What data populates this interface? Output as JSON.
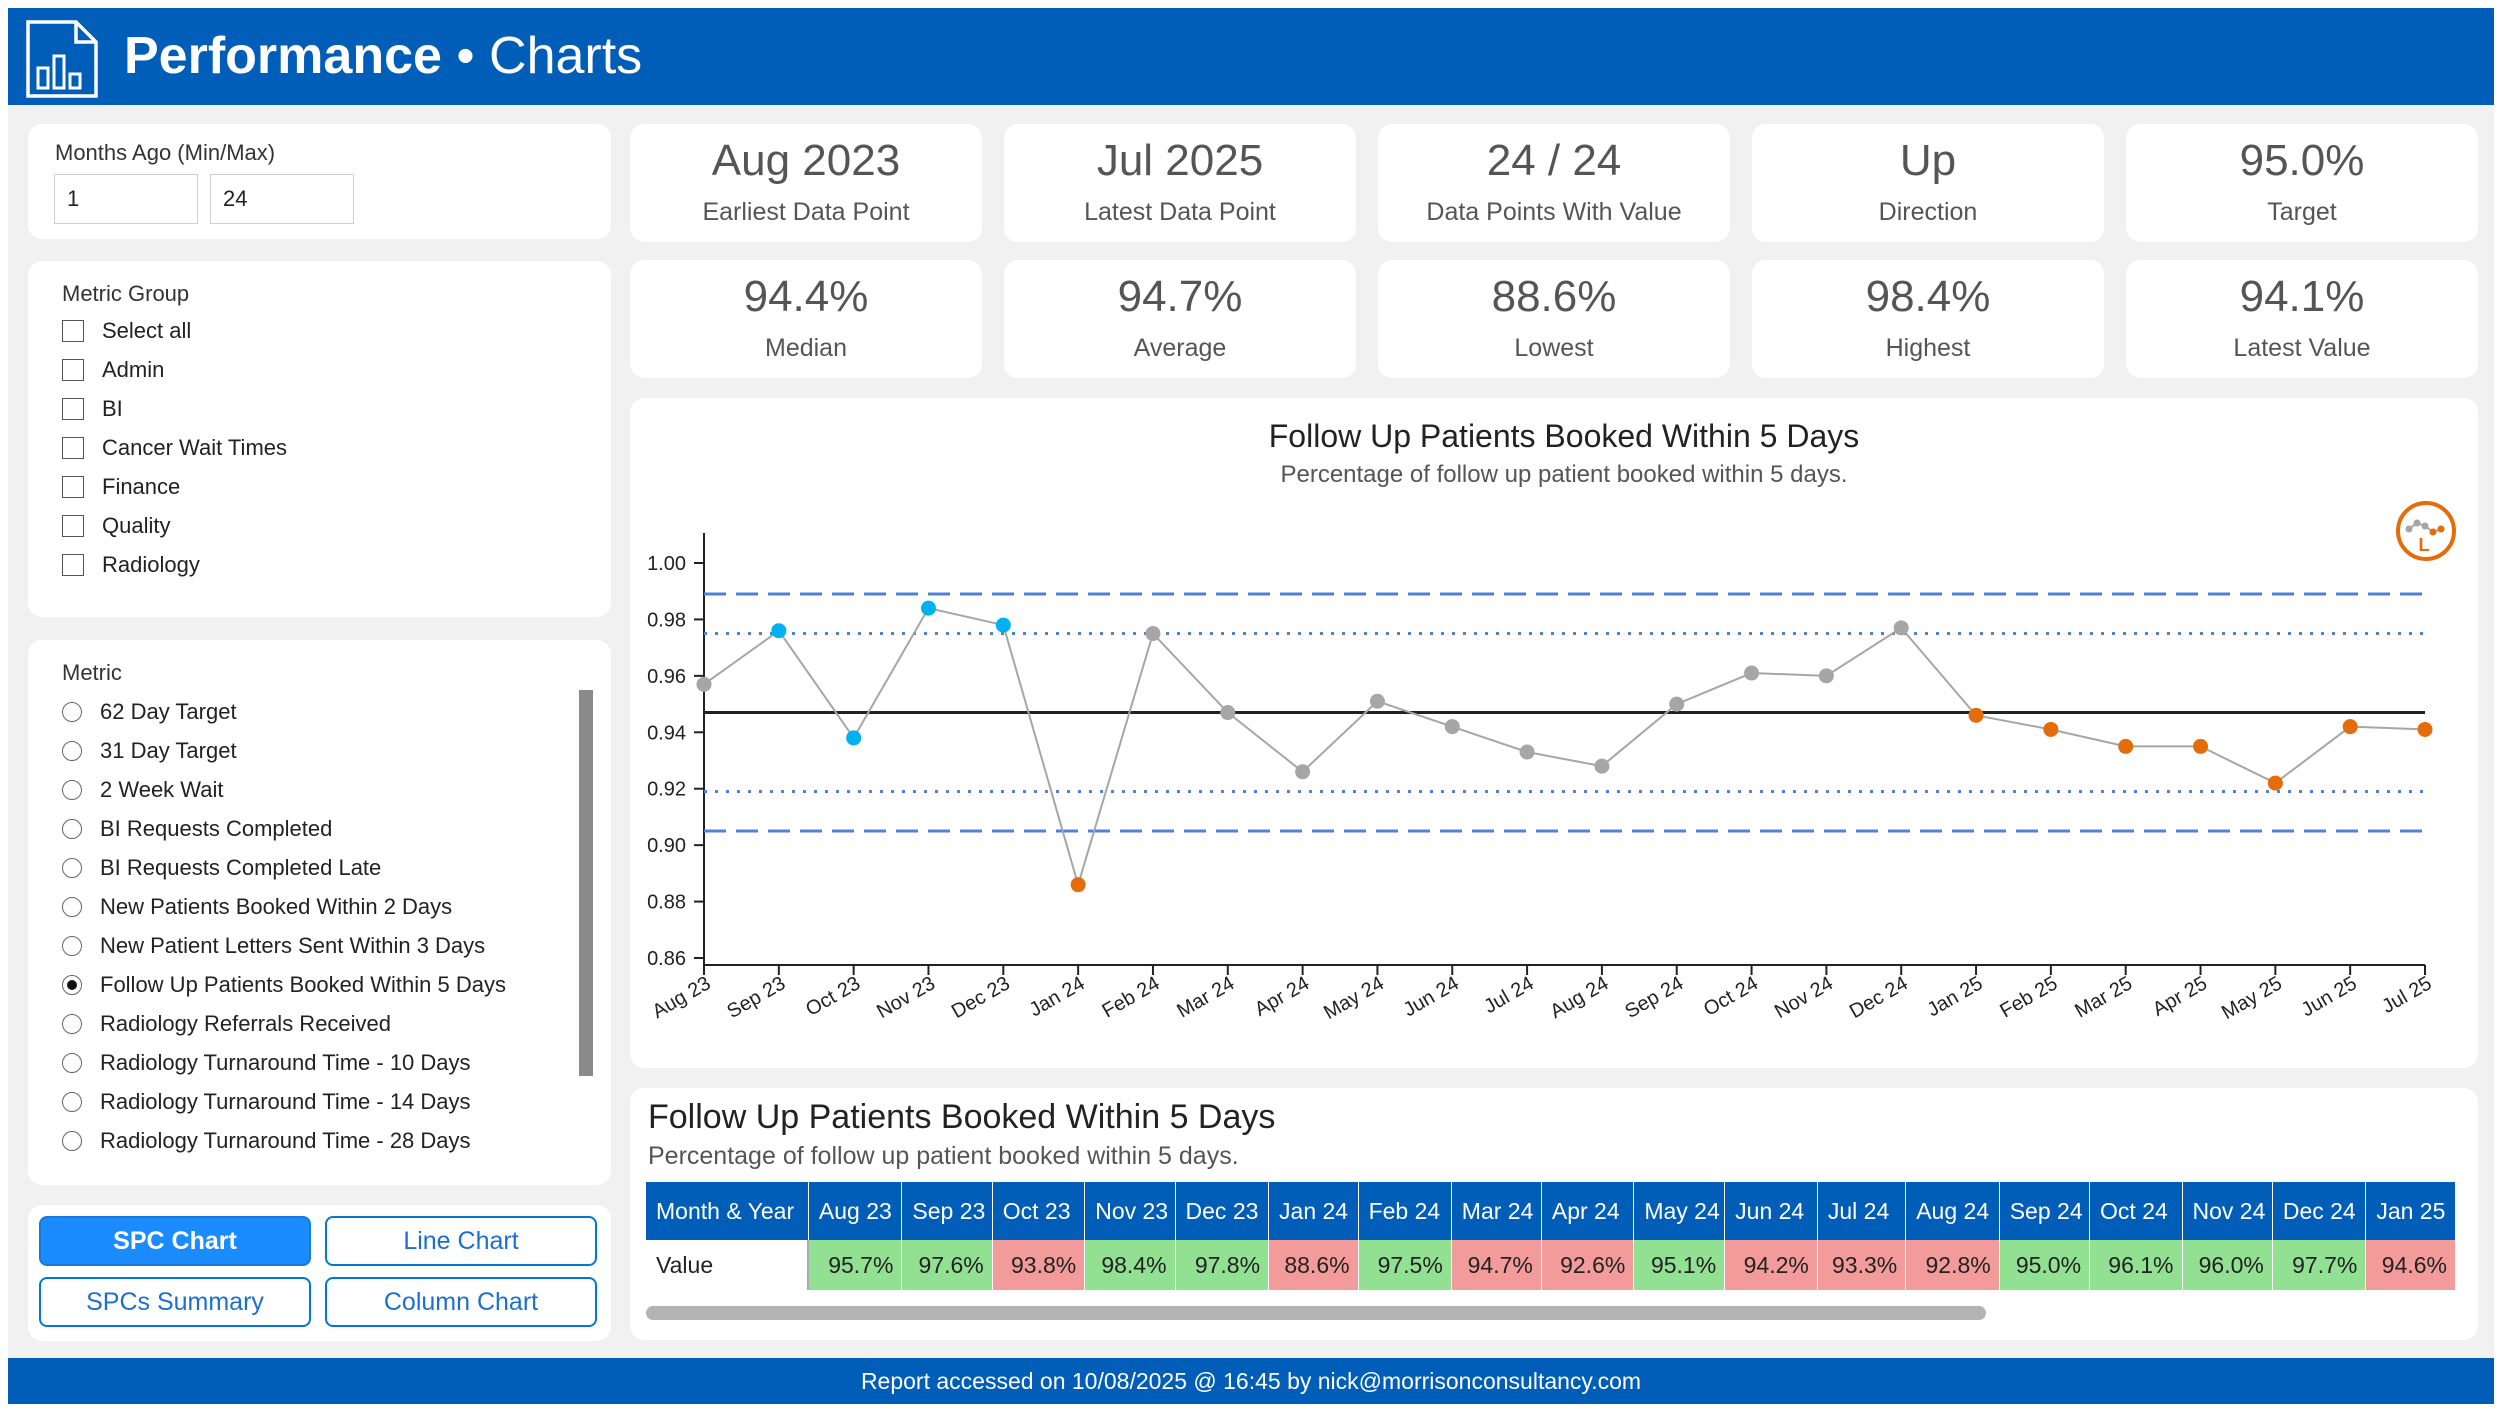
{
  "header": {
    "title_bold": "Performance",
    "title_rest": " • Charts"
  },
  "months": {
    "label": "Months Ago (Min/Max)",
    "min": "1",
    "max": "24"
  },
  "metric_group": {
    "title": "Metric Group",
    "items": [
      "Select all",
      "Admin",
      "BI",
      "Cancer Wait Times",
      "Finance",
      "Quality",
      "Radiology"
    ]
  },
  "metric": {
    "title": "Metric",
    "selected": "Follow Up Patients Booked Within 5 Days",
    "items": [
      "62 Day Target",
      "31 Day Target",
      "2 Week Wait",
      "BI Requests Completed",
      "BI Requests Completed Late",
      "New Patients Booked Within 2 Days",
      "New Patient Letters Sent Within 3 Days",
      "Follow Up Patients Booked Within 5 Days",
      "Radiology Referrals Received",
      "Radiology Turnaround Time - 10 Days",
      "Radiology Turnaround Time - 14 Days",
      "Radiology Turnaround Time - 28 Days"
    ]
  },
  "buttons": {
    "spc_chart": "SPC Chart",
    "line_chart": "Line Chart",
    "spcs_summary": "SPCs Summary",
    "column_chart": "Column Chart"
  },
  "kpis": [
    {
      "value": "Aug 2023",
      "label": "Earliest Data Point"
    },
    {
      "value": "Jul 2025",
      "label": "Latest Data Point"
    },
    {
      "value": "24 / 24",
      "label": "Data Points With Value"
    },
    {
      "value": "Up",
      "label": "Direction"
    },
    {
      "value": "95.0%",
      "label": "Target"
    },
    {
      "value": "94.4%",
      "label": "Median"
    },
    {
      "value": "94.7%",
      "label": "Average"
    },
    {
      "value": "88.6%",
      "label": "Lowest"
    },
    {
      "value": "98.4%",
      "label": "Highest"
    },
    {
      "value": "94.1%",
      "label": "Latest Value"
    }
  ],
  "chart_data": {
    "type": "line",
    "title": "Follow Up Patients Booked Within 5 Days",
    "subtitle": "Percentage of follow up patient booked within 5 days.",
    "categories": [
      "Aug 23",
      "Sep 23",
      "Oct 23",
      "Nov 23",
      "Dec 23",
      "Jan 24",
      "Feb 24",
      "Mar 24",
      "Apr 24",
      "May 24",
      "Jun 24",
      "Jul 24",
      "Aug 24",
      "Sep 24",
      "Oct 24",
      "Nov 24",
      "Dec 24",
      "Jan 25",
      "Feb 25",
      "Mar 25",
      "Apr 25",
      "May 25",
      "Jun 25",
      "Jul 25"
    ],
    "values": [
      0.957,
      0.976,
      0.938,
      0.984,
      0.978,
      0.886,
      0.975,
      0.947,
      0.926,
      0.951,
      0.942,
      0.933,
      0.928,
      0.95,
      0.961,
      0.96,
      0.977,
      0.946,
      0.941,
      0.935,
      0.935,
      0.922,
      0.942,
      0.941
    ],
    "point_status": [
      "common",
      "improvement",
      "improvement",
      "improvement",
      "improvement",
      "concern",
      "common",
      "common",
      "common",
      "common",
      "common",
      "common",
      "common",
      "common",
      "common",
      "common",
      "common",
      "concern",
      "concern",
      "concern",
      "concern",
      "concern",
      "concern",
      "concern"
    ],
    "mean": 0.947,
    "upper_process_limit": 0.989,
    "lower_process_limit": 0.905,
    "upper_two_sigma": 0.975,
    "lower_two_sigma": 0.919,
    "ylim": [
      0.86,
      1.0
    ],
    "yticks": [
      0.86,
      0.88,
      0.9,
      0.92,
      0.94,
      0.96,
      0.98,
      1.0
    ],
    "colors": {
      "common": "#a6a6a6",
      "improvement": "#00B0F0",
      "concern": "#E46C0A",
      "line": "#a6a6a6",
      "mean": "#222222",
      "limits": "#4f81d9"
    },
    "variation_icon": "spc-variation-concern-icon",
    "variation_icon_letter": "L"
  },
  "table": {
    "title": "Follow Up Patients Booked Within 5 Days",
    "subtitle": "Percentage of follow up patient booked within 5 days.",
    "header_label": "Month & Year",
    "row_label": "Value",
    "columns": [
      "Aug 23",
      "Sep 23",
      "Oct 23",
      "Nov 23",
      "Dec 23",
      "Jan 24",
      "Feb 24",
      "Mar 24",
      "Apr 24",
      "May 24",
      "Jun 24",
      "Jul 24",
      "Aug 24",
      "Sep 24",
      "Oct 24",
      "Nov 24",
      "Dec 24",
      "Jan 25"
    ],
    "values": [
      "95.7%",
      "97.6%",
      "93.8%",
      "98.4%",
      "97.8%",
      "88.6%",
      "97.5%",
      "94.7%",
      "92.6%",
      "95.1%",
      "94.2%",
      "93.3%",
      "92.8%",
      "95.0%",
      "96.1%",
      "96.0%",
      "97.7%",
      "94.6%"
    ],
    "status": [
      "good",
      "good",
      "bad",
      "good",
      "good",
      "bad",
      "good",
      "bad",
      "bad",
      "good",
      "bad",
      "bad",
      "bad",
      "good",
      "good",
      "good",
      "good",
      "bad"
    ],
    "colors": {
      "good": "#92e092",
      "bad": "#f39b9b"
    }
  },
  "footer": {
    "text": "Report accessed on 10/08/2025 @ 16:45 by nick@morrisonconsultancy.com"
  }
}
